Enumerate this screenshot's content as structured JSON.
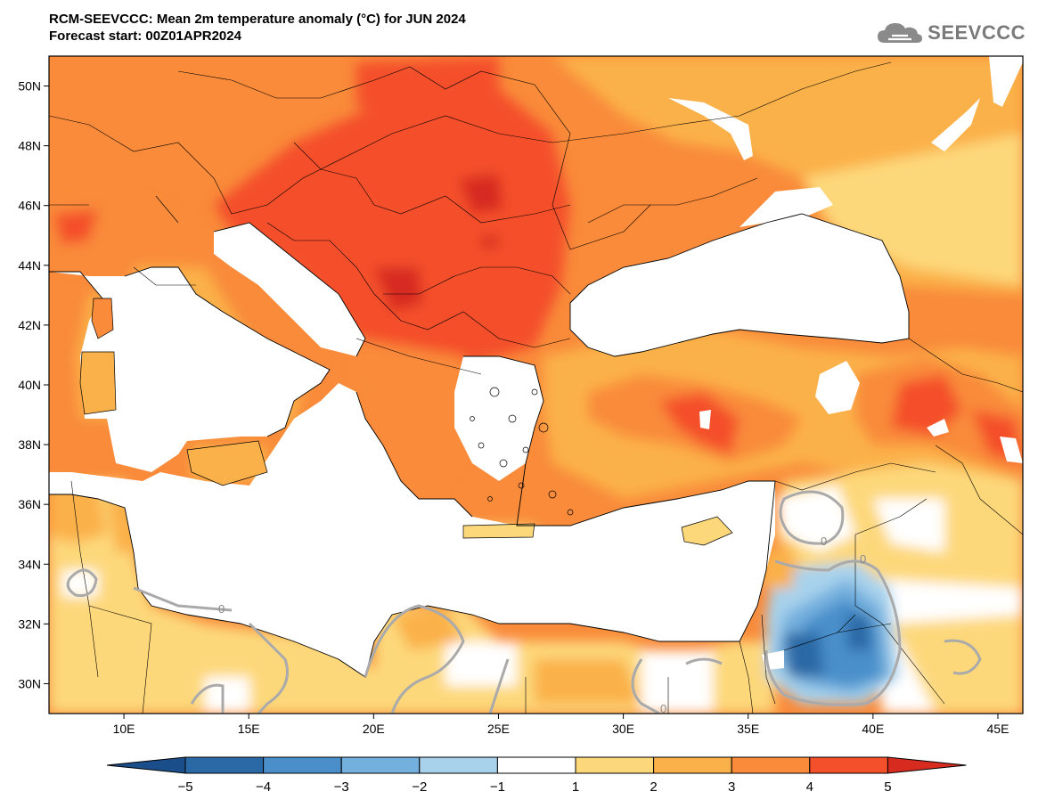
{
  "title": {
    "line1": "RCM-SEEVCCC: Mean 2m temperature anomaly (°C) for JUN 2024",
    "line2": "Forecast start: 00Z01APR2024"
  },
  "logo": {
    "text": "SEEVCCC",
    "icon": "cloud-icon"
  },
  "map": {
    "lon_range": [
      7,
      46
    ],
    "lat_range": [
      29,
      51
    ],
    "lat_ticks": [
      "50N",
      "48N",
      "46N",
      "44N",
      "42N",
      "40N",
      "38N",
      "36N",
      "34N",
      "32N",
      "30N"
    ],
    "lon_ticks": [
      "10E",
      "15E",
      "20E",
      "25E",
      "30E",
      "35E",
      "40E",
      "45E"
    ],
    "contour_label": "0"
  },
  "colorbar": {
    "labels": [
      "−5",
      "−4",
      "−3",
      "−2",
      "−1",
      "1",
      "2",
      "3",
      "4",
      "5"
    ],
    "colors": [
      "#1a4e8a",
      "#2b69a6",
      "#4a8fca",
      "#74b0de",
      "#a8d2ec",
      "#ffffff",
      "#fdd87a",
      "#fbb149",
      "#f98b3a",
      "#f4502b",
      "#d72b20"
    ]
  }
}
